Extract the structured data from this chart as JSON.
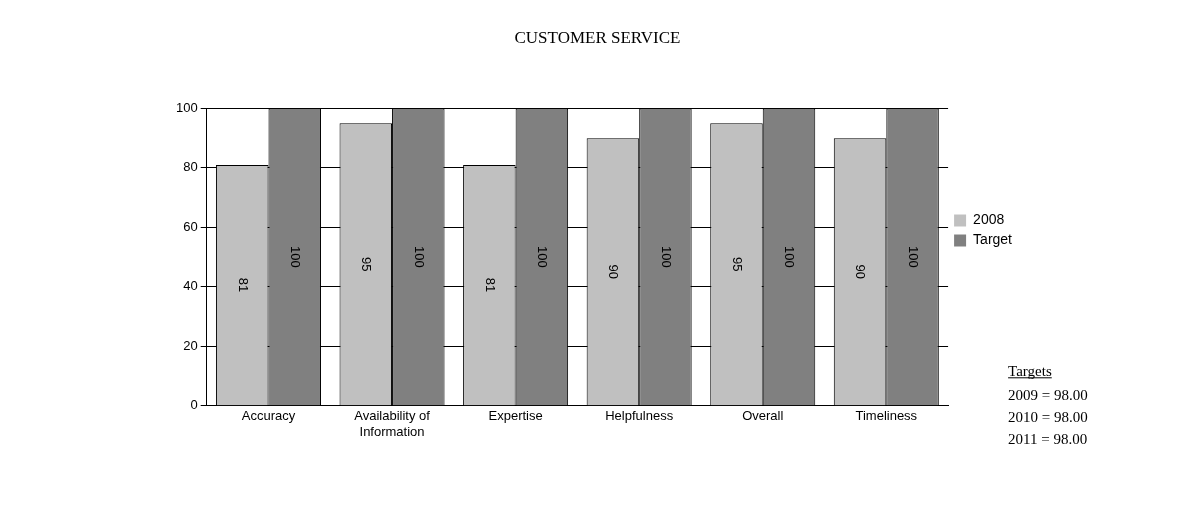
{
  "chart_data": {
    "type": "bar",
    "title": "CUSTOMER SERVICE",
    "categories": [
      "Accuracy",
      "Availability of Information",
      "Expertise",
      "Helpfulness",
      "Overall",
      "Timeliness"
    ],
    "series": [
      {
        "name": "2008",
        "color": "#c0c0c0",
        "values": [
          81,
          95,
          81,
          90,
          95,
          90
        ]
      },
      {
        "name": "Target",
        "color": "#808080",
        "values": [
          100,
          100,
          100,
          100,
          100,
          100
        ]
      }
    ],
    "ylim": [
      0,
      100
    ],
    "yticks": [
      0,
      20,
      40,
      60,
      80,
      100
    ],
    "grid": "y",
    "legend": "right",
    "data_labels": true,
    "annotations": [
      "Targets",
      "2009 = 98.00",
      "2010 = 98.00",
      "2011 = 98.00"
    ]
  }
}
